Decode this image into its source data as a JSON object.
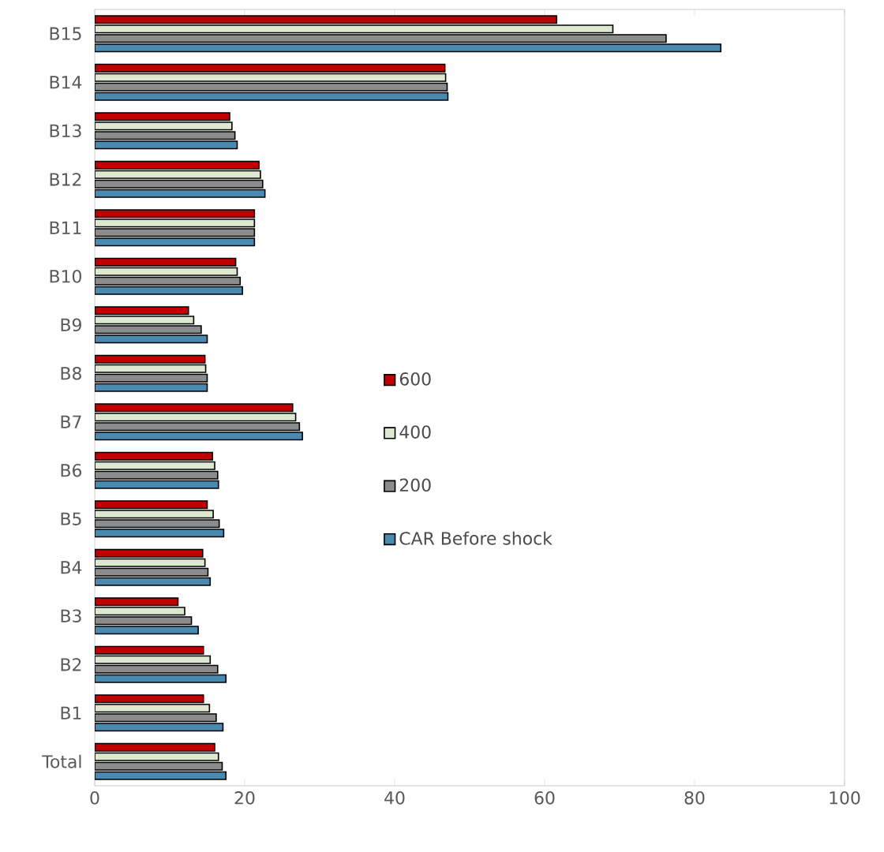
{
  "chart_data": {
    "type": "bar",
    "orientation": "horizontal",
    "categories": [
      "B15",
      "B14",
      "B13",
      "B12",
      "B11",
      "B10",
      "B9",
      "B8",
      "B7",
      "B6",
      "B5",
      "B4",
      "B3",
      "B2",
      "B1",
      "Total"
    ],
    "series": [
      {
        "name": "600",
        "color": "#c00000",
        "values": [
          61.6,
          46.7,
          18.0,
          21.9,
          21.3,
          18.8,
          12.5,
          14.7,
          26.4,
          15.7,
          15.0,
          14.4,
          11.1,
          14.5,
          14.5,
          16.0
        ]
      },
      {
        "name": "400",
        "color": "#dce9d0",
        "values": [
          69.1,
          46.8,
          18.3,
          22.1,
          21.3,
          19.0,
          13.2,
          14.8,
          26.8,
          16.0,
          15.8,
          14.7,
          12.0,
          15.4,
          15.3,
          16.5
        ]
      },
      {
        "name": "200",
        "color": "#8c8c8c",
        "values": [
          76.2,
          47.0,
          18.7,
          22.4,
          21.3,
          19.4,
          14.2,
          15.0,
          27.3,
          16.4,
          16.6,
          15.1,
          12.9,
          16.4,
          16.2,
          17.0
        ]
      },
      {
        "name": "CAR Before shock",
        "color": "#4a8ab0",
        "values": [
          83.5,
          47.1,
          19.0,
          22.7,
          21.3,
          19.7,
          15.0,
          15.0,
          27.7,
          16.5,
          17.2,
          15.4,
          13.8,
          17.5,
          17.1,
          17.5
        ]
      }
    ],
    "xlim": [
      0,
      100
    ],
    "xticks": [
      0,
      20,
      40,
      60,
      80,
      100
    ],
    "grid": false,
    "legend": "right"
  }
}
